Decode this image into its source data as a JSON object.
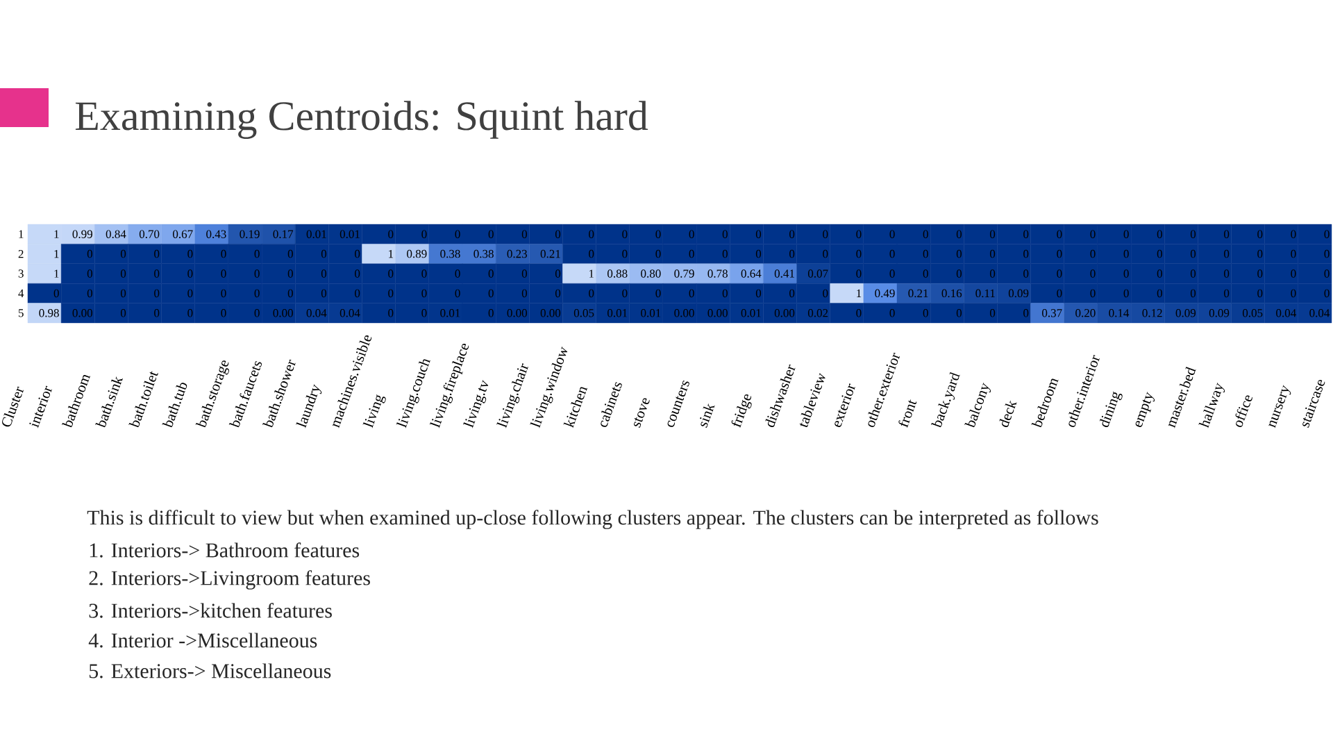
{
  "chart_data": {
    "type": "heatmap",
    "title": "Examining Centroids: Squint hard",
    "ylabel": "Cluster",
    "categories": [
      "interior",
      "bathroom",
      "bath.sink",
      "bath.toilet",
      "bath.tub",
      "bath.storage",
      "bath.faucets",
      "bath.shower",
      "laundry",
      "machines.visible",
      "living",
      "living.couch",
      "living.fireplace",
      "living.tv",
      "living.chair",
      "living.window",
      "kitchen",
      "cabinets",
      "stove",
      "counters",
      "sink",
      "fridge",
      "dishwasher",
      "tableview",
      "exterior",
      "other.exterior",
      "front",
      "back.yard",
      "balcony",
      "deck",
      "bedroom",
      "other.interior",
      "dining",
      "empty",
      "master.bed",
      "hallway",
      "office",
      "nursery",
      "staircase"
    ],
    "y_categories": [
      "1",
      "2",
      "3",
      "4",
      "5"
    ],
    "cells": [
      [
        1,
        0.99,
        0.84,
        0.7,
        0.67,
        0.43,
        0.19,
        0.17,
        0.01,
        0.01,
        0,
        0,
        0,
        0,
        0,
        0,
        0,
        0,
        0,
        0,
        0,
        0,
        0,
        0,
        0,
        0,
        0,
        0,
        0,
        0,
        0,
        0,
        0,
        0,
        0,
        0,
        0,
        0,
        0
      ],
      [
        1,
        0,
        0,
        0,
        0,
        0,
        0,
        0,
        0,
        0,
        1,
        0.89,
        0.38,
        0.38,
        0.23,
        0.21,
        0,
        0,
        0,
        0,
        0,
        0,
        0,
        0,
        0,
        0,
        0,
        0,
        0,
        0,
        0,
        0,
        0,
        0,
        0,
        0,
        0,
        0,
        0
      ],
      [
        1,
        0,
        0,
        0,
        0,
        0,
        0,
        0,
        0,
        0,
        0,
        0,
        0,
        0,
        0,
        0,
        1,
        0.88,
        0.8,
        0.79,
        0.78,
        0.64,
        0.41,
        0.07,
        0,
        0,
        0,
        0,
        0,
        0,
        0,
        0,
        0,
        0,
        0,
        0,
        0,
        0,
        0
      ],
      [
        0,
        0,
        0,
        0,
        0,
        0,
        0,
        0,
        0,
        0,
        0,
        0,
        0,
        0,
        0,
        0,
        0,
        0,
        0,
        0,
        0,
        0,
        0,
        0,
        1,
        0.49,
        0.21,
        0.16,
        0.11,
        0.09,
        0,
        0,
        0,
        0,
        0,
        0,
        0,
        0,
        0
      ],
      [
        0.98,
        0,
        0,
        0,
        0,
        0,
        0,
        0,
        0.04,
        0.04,
        0,
        0,
        0.01,
        0,
        0,
        0,
        0.05,
        0.01,
        0.01,
        0,
        0,
        0.01,
        0,
        0.02,
        0,
        0,
        0,
        0,
        0,
        0,
        0.37,
        0.2,
        0.14,
        0.12,
        0.09,
        0.09,
        0.05,
        0.04,
        0.04
      ]
    ],
    "cell_labels": [
      [
        "1",
        "0.99",
        "0.84",
        "0.70",
        "0.67",
        "0.43",
        "0.19",
        "0.17",
        "0.01",
        "0.01",
        "0",
        "0",
        "0",
        "0",
        "0",
        "0",
        "0",
        "0",
        "0",
        "0",
        "0",
        "0",
        "0",
        "0",
        "0",
        "0",
        "0",
        "0",
        "0",
        "0",
        "0",
        "0",
        "0",
        "0",
        "0",
        "0",
        "0",
        "0",
        "0"
      ],
      [
        "1",
        "0",
        "0",
        "0",
        "0",
        "0",
        "0",
        "0",
        "0",
        "0",
        "1",
        "0.89",
        "0.38",
        "0.38",
        "0.23",
        "0.21",
        "0",
        "0",
        "0",
        "0",
        "0",
        "0",
        "0",
        "0",
        "0",
        "0",
        "0",
        "0",
        "0",
        "0",
        "0",
        "0",
        "0",
        "0",
        "0",
        "0",
        "0",
        "0",
        "0"
      ],
      [
        "1",
        "0",
        "0",
        "0",
        "0",
        "0",
        "0",
        "0",
        "0",
        "0",
        "0",
        "0",
        "0",
        "0",
        "0",
        "0",
        "1",
        "0.88",
        "0.80",
        "0.79",
        "0.78",
        "0.64",
        "0.41",
        "0.07",
        "0",
        "0",
        "0",
        "0",
        "0",
        "0",
        "0",
        "0",
        "0",
        "0",
        "0",
        "0",
        "0",
        "0",
        "0"
      ],
      [
        "0",
        "0",
        "0",
        "0",
        "0",
        "0",
        "0",
        "0",
        "0",
        "0",
        "0",
        "0",
        "0",
        "0",
        "0",
        "0",
        "0",
        "0",
        "0",
        "0",
        "0",
        "0",
        "0",
        "0",
        "1",
        "0.49",
        "0.21",
        "0.16",
        "0.11",
        "0.09",
        "0",
        "0",
        "0",
        "0",
        "0",
        "0",
        "0",
        "0",
        "0"
      ],
      [
        "0.98",
        "0.00",
        "0",
        "0",
        "0",
        "0",
        "0",
        "0.00",
        "0.04",
        "0.04",
        "0",
        "0",
        "0.01",
        "0",
        "0.00",
        "0.00",
        "0.05",
        "0.01",
        "0.01",
        "0.00",
        "0.00",
        "0.01",
        "0.00",
        "0.02",
        "0",
        "0",
        "0",
        "0",
        "0",
        "0",
        "0.37",
        "0.20",
        "0.14",
        "0.12",
        "0.09",
        "0.09",
        "0.05",
        "0.04",
        "0.04"
      ]
    ],
    "annotations": [
      "This is difficult to view but when examined up-close following clusters appear. The clusters can be interpreted as follows",
      "1.  Interiors-> Bathroom features",
      "2.  Interiors->Livingroom features",
      "3.  Interiors->kitchen features",
      "4.  Interior ->Miscellaneous",
      "5.  Exteriors-> Miscellaneous"
    ]
  }
}
